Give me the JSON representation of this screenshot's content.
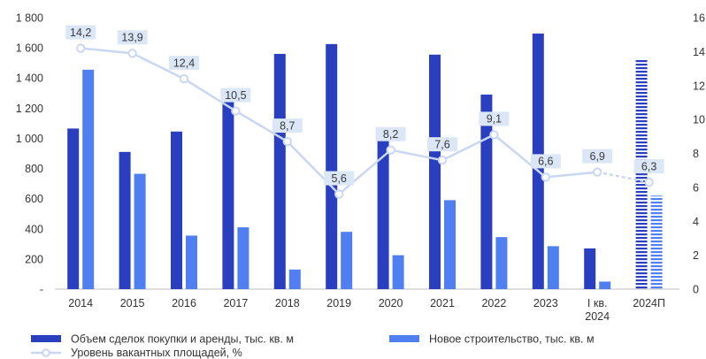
{
  "chart_data": {
    "type": "bar",
    "categories": [
      "2014",
      "2015",
      "2016",
      "2017",
      "2018",
      "2019",
      "2020",
      "2021",
      "2022",
      "2023",
      "I кв. 2024",
      "2024П"
    ],
    "y_left": {
      "ticks": [
        0,
        200,
        400,
        600,
        800,
        1000,
        1200,
        1400,
        1600,
        1800
      ],
      "tick_labels": [
        "-",
        "200",
        "400",
        "600",
        "800",
        "1 000",
        "1 200",
        "1 400",
        "1 600",
        "1 800"
      ],
      "ylim": [
        0,
        1800
      ]
    },
    "y_right": {
      "ticks": [
        0,
        2,
        4,
        6,
        8,
        10,
        12,
        14,
        16
      ],
      "tick_labels": [
        "0",
        "2",
        "4",
        "6",
        "8",
        "10",
        "12",
        "14",
        "16"
      ],
      "ylim": [
        0,
        16
      ]
    },
    "series": [
      {
        "name": "Объем сделок покупки и аренды, тыс. кв. м",
        "kind": "bar",
        "axis": "left",
        "color": "#2a3fbf",
        "values": [
          1065,
          910,
          1045,
          1270,
          1560,
          1625,
          1020,
          1555,
          1290,
          1695,
          270,
          1520
        ],
        "forecast_pattern": [
          false,
          false,
          false,
          false,
          false,
          false,
          false,
          false,
          false,
          false,
          false,
          true
        ]
      },
      {
        "name": "Новое строительство, тыс. кв. м",
        "kind": "bar",
        "axis": "left",
        "color": "#4f7ff0",
        "values": [
          1455,
          765,
          355,
          410,
          130,
          380,
          225,
          590,
          345,
          285,
          50,
          620
        ],
        "forecast_pattern": [
          false,
          false,
          false,
          false,
          false,
          false,
          false,
          false,
          false,
          false,
          false,
          true
        ]
      },
      {
        "name": "Уровень вакантных площадей, %",
        "kind": "line",
        "axis": "right",
        "color": "#c9d7f2",
        "values": [
          14.2,
          13.9,
          12.4,
          10.5,
          8.7,
          5.6,
          8.2,
          7.6,
          9.1,
          6.6,
          6.9,
          6.3
        ],
        "labels": [
          "14,2",
          "13,9",
          "12,4",
          "10,5",
          "8,7",
          "5,6",
          "8,2",
          "7,6",
          "9,1",
          "6,6",
          "6,9",
          "6,3"
        ],
        "dashed_last_segment": true
      }
    ],
    "legend_position": "bottom",
    "grid": false
  }
}
